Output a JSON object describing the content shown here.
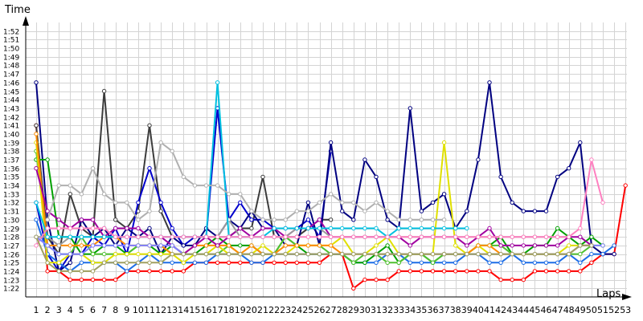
{
  "chart_data": {
    "type": "line",
    "xlabel": "Laps",
    "ylabel": "Time",
    "x": [
      1,
      2,
      3,
      4,
      5,
      6,
      7,
      8,
      9,
      10,
      11,
      12,
      13,
      14,
      15,
      16,
      17,
      18,
      19,
      20,
      21,
      22,
      23,
      24,
      25,
      26,
      27,
      28,
      29,
      30,
      31,
      32,
      33,
      34,
      35,
      36,
      37,
      38,
      39,
      40,
      41,
      42,
      43,
      44,
      45,
      46,
      47,
      48,
      49,
      50,
      51,
      52,
      53
    ],
    "x_tick_labels": [
      "1",
      "2",
      "3",
      "4",
      "5",
      "6",
      "7",
      "8",
      "9",
      "10",
      "11",
      "12",
      "13",
      "14",
      "15",
      "16",
      "17",
      "18",
      "19",
      "20",
      "21",
      "22",
      "23",
      "24",
      "25",
      "26",
      "27",
      "28",
      "29",
      "30",
      "31",
      "32",
      "33",
      "34",
      "35",
      "36",
      "37",
      "38",
      "39",
      "40",
      "41",
      "42",
      "43",
      "44",
      "45",
      "46",
      "47",
      "48",
      "49",
      "50",
      "51",
      "52",
      "53"
    ],
    "y_unit": "seconds",
    "ylim": [
      81,
      113
    ],
    "y_tick_values": [
      82,
      83,
      84,
      85,
      86,
      87,
      88,
      89,
      90,
      91,
      92,
      93,
      94,
      95,
      96,
      97,
      98,
      99,
      100,
      101,
      102,
      103,
      104,
      105,
      106,
      107,
      108,
      109,
      110,
      111,
      112
    ],
    "y_tick_labels": [
      "1:22",
      "1:23",
      "1:24",
      "1:25",
      "1:26",
      "1:27",
      "1:28",
      "1:29",
      "1:30",
      "1:31",
      "1:32",
      "1:33",
      "1:34",
      "1:35",
      "1:36",
      "1:37",
      "1:38",
      "1:39",
      "1:40",
      "1:41",
      "1:42",
      "1:43",
      "1:44",
      "1:45",
      "1:46",
      "1:47",
      "1:48",
      "1:49",
      "1:50",
      "1:51",
      "1:52"
    ],
    "grid": true,
    "legend": "none",
    "series": [
      {
        "color": "#ff0000",
        "values": [
          101,
          84,
          84,
          83,
          83,
          83,
          83,
          83,
          84,
          84,
          84,
          84,
          84,
          84,
          85,
          85,
          85,
          85,
          85,
          85,
          85,
          85,
          85,
          85,
          85,
          85,
          86,
          86,
          82,
          83,
          83,
          83,
          84,
          84,
          84,
          84,
          84,
          84,
          84,
          84,
          84,
          83,
          83,
          83,
          84,
          84,
          84,
          84,
          84,
          85,
          86,
          86,
          94
        ]
      },
      {
        "color": "#3c3c3c",
        "values": [
          101,
          88,
          86,
          93,
          89,
          88,
          105,
          90,
          89,
          91,
          101,
          91,
          88,
          88,
          88,
          88,
          88,
          88,
          89,
          89,
          95,
          88,
          88,
          88,
          89,
          90,
          90,
          null,
          null,
          null,
          null,
          null,
          null,
          null,
          null,
          null,
          null,
          null,
          null,
          null,
          null,
          null,
          null,
          null,
          null,
          null,
          null,
          null,
          null,
          null,
          null,
          null,
          null
        ]
      },
      {
        "color": "#0000cc",
        "values": [
          92,
          86,
          84,
          86,
          86,
          88,
          87,
          89,
          86,
          92,
          96,
          92,
          89,
          87,
          88,
          88,
          103,
          90,
          92,
          90,
          90,
          89,
          89,
          89,
          90,
          88,
          98,
          null,
          null,
          null,
          null,
          null,
          null,
          null,
          null,
          null,
          null,
          null,
          null,
          null,
          null,
          null,
          null,
          null,
          null,
          null,
          null,
          null,
          null,
          null,
          null,
          null,
          null
        ]
      },
      {
        "color": "#000080",
        "values": [
          106,
          90,
          84,
          85,
          90,
          88,
          89,
          87,
          89,
          88,
          89,
          86,
          88,
          87,
          87,
          89,
          88,
          90,
          89,
          91,
          89,
          89,
          87,
          87,
          92,
          87,
          99,
          91,
          90,
          97,
          95,
          90,
          89,
          103,
          91,
          92,
          93,
          89,
          91,
          97,
          106,
          95,
          92,
          91,
          91,
          91,
          95,
          96,
          99,
          87,
          86,
          86,
          null
        ]
      },
      {
        "color": "#1e6ee6",
        "values": [
          90,
          86,
          85,
          84,
          85,
          85,
          85,
          85,
          84,
          85,
          86,
          85,
          85,
          85,
          85,
          85,
          86,
          86,
          86,
          85,
          85,
          86,
          86,
          86,
          86,
          86,
          86,
          86,
          85,
          85,
          85,
          86,
          86,
          85,
          85,
          85,
          85,
          85,
          86,
          86,
          85,
          85,
          86,
          85,
          85,
          85,
          85,
          86,
          85,
          86,
          86,
          87,
          null
        ]
      },
      {
        "color": "#00a000",
        "values": [
          97,
          97,
          88,
          88,
          86,
          86,
          87,
          87,
          86,
          87,
          87,
          86,
          87,
          86,
          86,
          87,
          88,
          87,
          87,
          87,
          86,
          86,
          88,
          87,
          86,
          86,
          86,
          86,
          85,
          85,
          86,
          87,
          85,
          86,
          86,
          85,
          86,
          86,
          86,
          87,
          87,
          88,
          86,
          86,
          87,
          87,
          89,
          88,
          87,
          88,
          87,
          null,
          null
        ]
      },
      {
        "color": "#50c030",
        "values": [
          98,
          87,
          86,
          86,
          88,
          86,
          86,
          86,
          86,
          87,
          87,
          87,
          86,
          86,
          86,
          86,
          86,
          87,
          86,
          86,
          86,
          86,
          88,
          87,
          87,
          87,
          86,
          86,
          85,
          86,
          86,
          85,
          85,
          86,
          86,
          85,
          86,
          86,
          86,
          87,
          87,
          87,
          86,
          86,
          86,
          86,
          86,
          86,
          86,
          87,
          87,
          null,
          null
        ]
      },
      {
        "color": "#e0e000",
        "values": [
          99,
          85,
          85,
          86,
          86,
          85,
          85,
          86,
          86,
          86,
          86,
          86,
          86,
          85,
          86,
          86,
          87,
          86,
          86,
          86,
          87,
          86,
          86,
          87,
          87,
          87,
          87,
          88,
          86,
          86,
          87,
          88,
          86,
          86,
          86,
          86,
          99,
          87,
          86,
          87,
          86,
          86,
          86,
          86,
          86,
          86,
          86,
          87,
          87,
          87,
          null,
          null,
          null
        ]
      },
      {
        "color": "#ff8c00",
        "values": [
          100,
          87,
          87,
          87,
          87,
          87,
          88,
          88,
          87,
          87,
          87,
          87,
          86,
          86,
          87,
          87,
          87,
          87,
          86,
          87,
          86,
          86,
          87,
          87,
          87,
          87,
          87,
          86,
          86,
          86,
          86,
          86,
          86,
          86,
          86,
          86,
          86,
          86,
          86,
          87,
          87,
          86,
          86,
          86,
          86,
          86,
          86,
          86,
          87,
          87,
          null,
          null,
          null
        ]
      },
      {
        "color": "#a000a0",
        "values": [
          96,
          91,
          90,
          89,
          90,
          90,
          88,
          89,
          89,
          89,
          88,
          88,
          87,
          86,
          87,
          88,
          87,
          88,
          89,
          88,
          89,
          89,
          88,
          89,
          89,
          90,
          88,
          88,
          88,
          88,
          88,
          88,
          88,
          87,
          88,
          88,
          88,
          88,
          87,
          88,
          89,
          87,
          87,
          87,
          87,
          87,
          87,
          88,
          88,
          87,
          null,
          null,
          null
        ]
      },
      {
        "color": "#9a9a9a",
        "values": [
          88,
          88,
          87,
          88,
          88,
          88,
          88,
          88,
          88,
          88,
          88,
          88,
          88,
          88,
          88,
          88,
          88,
          90,
          88,
          88,
          88,
          88,
          88,
          89,
          89,
          89,
          88,
          88,
          88,
          88,
          88,
          88,
          88,
          88,
          88,
          88,
          88,
          88,
          88,
          88,
          88,
          88,
          88,
          88,
          88,
          88,
          88,
          88,
          null,
          null,
          null,
          null,
          null
        ]
      },
      {
        "color": "#00c0e0",
        "values": [
          92,
          88,
          88,
          88,
          88,
          88,
          88,
          88,
          88,
          88,
          88,
          88,
          88,
          88,
          88,
          88,
          106,
          88,
          88,
          88,
          88,
          89,
          89,
          89,
          89,
          89,
          89,
          89,
          89,
          89,
          89,
          88,
          89,
          89,
          89,
          89,
          89,
          89,
          89,
          null,
          null,
          null,
          null,
          null,
          null,
          null,
          null,
          null,
          null,
          null,
          null,
          null,
          null
        ]
      },
      {
        "color": "#ff80c0",
        "values": [
          87,
          89,
          89,
          89,
          89,
          89,
          89,
          88,
          88,
          88,
          88,
          88,
          88,
          88,
          88,
          88,
          88,
          88,
          88,
          88,
          88,
          88,
          88,
          88,
          88,
          88,
          88,
          88,
          88,
          88,
          88,
          88,
          88,
          88,
          88,
          88,
          88,
          88,
          88,
          88,
          88,
          88,
          88,
          88,
          88,
          88,
          88,
          88,
          89,
          97,
          92,
          null,
          null
        ]
      },
      {
        "color": "#8080ff",
        "values": [
          88,
          87,
          86,
          86,
          86,
          87,
          87,
          87,
          87,
          87,
          87,
          87,
          87,
          86,
          86,
          86,
          86,
          86,
          86,
          86,
          86,
          86,
          86,
          86,
          86,
          86,
          86,
          86,
          86,
          86,
          86,
          86,
          86,
          86,
          86,
          86,
          86,
          86,
          86,
          86,
          86,
          86,
          86,
          86,
          86,
          86,
          86,
          86,
          87,
          87,
          87,
          null,
          null
        ]
      },
      {
        "color": "#b0b0b0",
        "values": [
          null,
          90,
          94,
          94,
          93,
          96,
          93,
          92,
          92,
          90,
          91,
          99,
          98,
          95,
          94,
          94,
          94,
          93,
          93,
          91,
          90,
          90,
          90,
          91,
          91,
          92,
          93,
          92,
          92,
          91,
          92,
          91,
          90,
          90,
          90,
          90,
          90,
          null,
          null,
          null,
          null,
          null,
          null,
          null,
          null,
          null,
          null,
          null,
          null,
          null,
          null,
          null,
          null
        ]
      },
      {
        "color": "#a0a060",
        "values": [
          88,
          85,
          84,
          84,
          84,
          84,
          85,
          85,
          85,
          85,
          85,
          85,
          86,
          86,
          86,
          86,
          86,
          86,
          86,
          86,
          86,
          86,
          86,
          86,
          86,
          86,
          86,
          86,
          86,
          86,
          86,
          86,
          86,
          86,
          86,
          86,
          86,
          86,
          86,
          86,
          86,
          86,
          86,
          86,
          86,
          86,
          86,
          86,
          87,
          87,
          null,
          null,
          null
        ]
      }
    ]
  }
}
